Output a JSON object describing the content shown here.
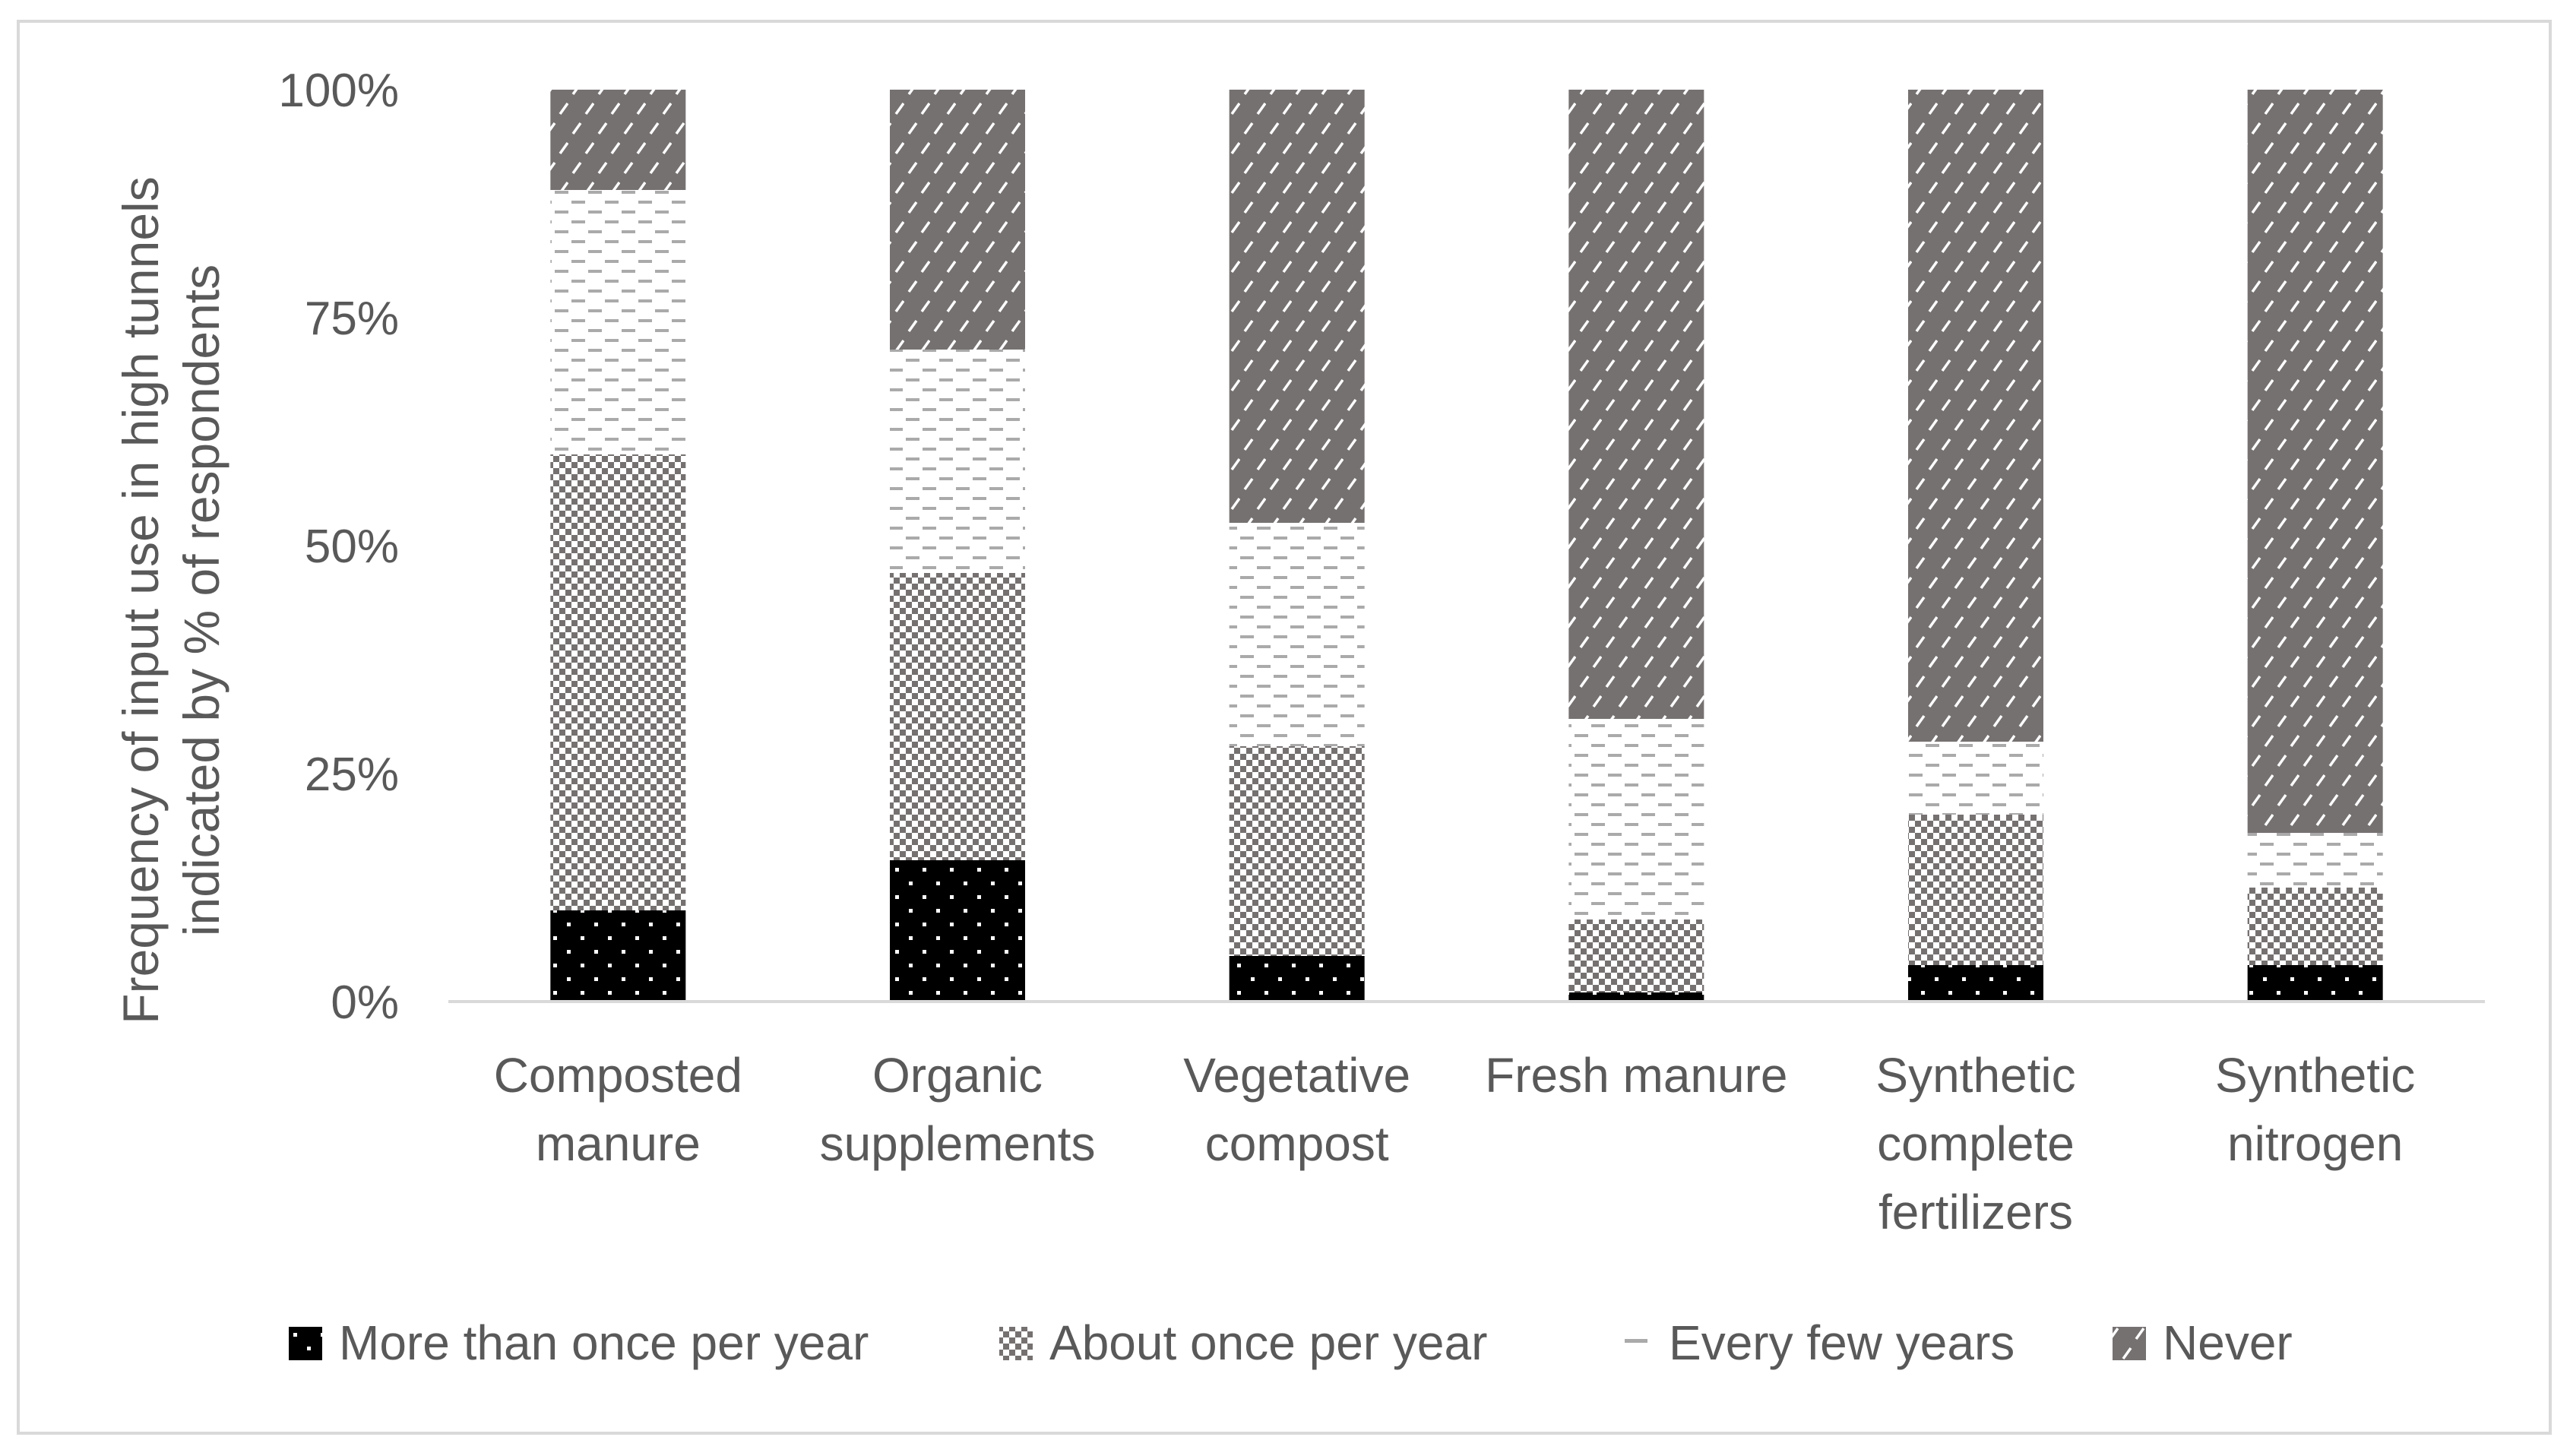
{
  "chart_data": {
    "type": "bar",
    "stacked": true,
    "title": "",
    "xlabel": "",
    "ylabel_lines": [
      "Frequency of input use in high tunnels",
      "indicated by % of respondents"
    ],
    "ylim": [
      0,
      100
    ],
    "yticks": [
      "0%",
      "25%",
      "50%",
      "75%",
      "100%"
    ],
    "categories": [
      [
        "Composted",
        "manure"
      ],
      [
        "Organic",
        "supplements"
      ],
      [
        "Vegetative",
        "compost"
      ],
      [
        "Fresh manure"
      ],
      [
        "Synthetic",
        "complete",
        "fertilizers"
      ],
      [
        "Synthetic",
        "nitrogen"
      ]
    ],
    "series": [
      {
        "name": "More than once per year",
        "pattern": "dots",
        "values": [
          10,
          15.5,
          5,
          1,
          4,
          4
        ]
      },
      {
        "name": "About once per year",
        "pattern": "check",
        "values": [
          50,
          31.5,
          23,
          8,
          16.5,
          8.5
        ]
      },
      {
        "name": "Every few years",
        "pattern": "dash",
        "values": [
          29,
          24.5,
          24.5,
          22,
          8,
          6
        ]
      },
      {
        "name": "Never",
        "pattern": "diag",
        "values": [
          11,
          28.5,
          47.5,
          69,
          71.5,
          81.5
        ]
      }
    ],
    "legend_position": "bottom"
  },
  "colors": {
    "text": "#595959",
    "axis": "#d9d9d9",
    "border": "#d9d9d9",
    "dark_fill": "#767171",
    "black_fill": "#000000"
  }
}
